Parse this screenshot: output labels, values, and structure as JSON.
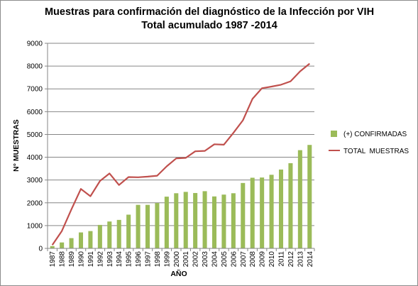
{
  "chart_data": {
    "type": "bar",
    "title": [
      "Muestras para confirmación del diagnóstico de la Infección por VIH",
      "Total acumulado 1987 -2014"
    ],
    "xlabel": "AÑO",
    "ylabel": "N° MUESTRAS",
    "ylim": [
      0,
      9000
    ],
    "ytick_step": 1000,
    "yticks": [
      "0",
      "1000",
      "2000",
      "3000",
      "4000",
      "5000",
      "6000",
      "7000",
      "8000",
      "9000"
    ],
    "grid": "horizontal",
    "legend_position": "right",
    "categories": [
      "1987",
      "1988",
      "1989",
      "1990",
      "1991",
      "1992",
      "1993",
      "1994",
      "1995",
      "1996",
      "1997",
      "1998",
      "1999",
      "2000",
      "2001",
      "2002",
      "2003",
      "2004",
      "2005",
      "2006",
      "2007",
      "2008",
      "2009",
      "2010",
      "2011",
      "2012",
      "2013",
      "2014"
    ],
    "series": [
      {
        "name": "(+) CONFIRMADAS",
        "type": "bar",
        "color": "#9bbb59",
        "values": [
          100,
          260,
          450,
          700,
          760,
          1030,
          1180,
          1250,
          1480,
          1910,
          1910,
          1990,
          2270,
          2420,
          2480,
          2430,
          2510,
          2280,
          2360,
          2420,
          2870,
          3100,
          3110,
          3230,
          3460,
          3740,
          4310,
          4540
        ]
      },
      {
        "name": "TOTAL  MUESTRAS",
        "type": "line",
        "color": "#c0504d",
        "values": [
          150,
          760,
          1710,
          2610,
          2290,
          2960,
          3290,
          2780,
          3130,
          3120,
          3150,
          3190,
          3600,
          3950,
          3970,
          4260,
          4280,
          4570,
          4550,
          5070,
          5620,
          6560,
          7030,
          7100,
          7180,
          7330,
          7770,
          8110
        ]
      }
    ]
  }
}
